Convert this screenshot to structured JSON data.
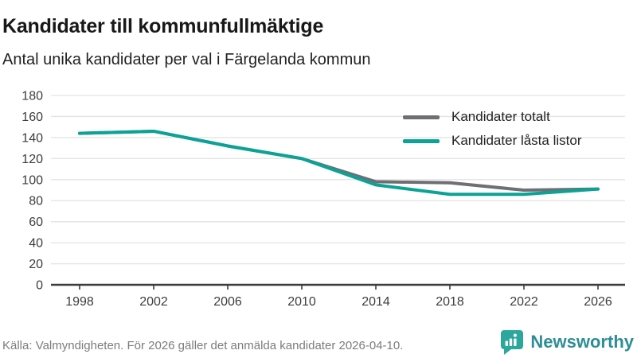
{
  "header": {
    "title": "Kandidater till kommunfullmäktige",
    "subtitle": "Antal unika kandidater per val i Färgelanda kommun"
  },
  "chart_data": {
    "type": "line",
    "categories": [
      "1998",
      "2002",
      "2006",
      "2010",
      "2014",
      "2018",
      "2022",
      "2026"
    ],
    "series": [
      {
        "name": "Kandidater totalt",
        "color": "#6f6e73",
        "values": [
          144,
          146,
          132,
          120,
          98,
          97,
          90,
          91
        ]
      },
      {
        "name": "Kandidater låsta listor",
        "color": "#0aa396",
        "values": [
          144,
          146,
          132,
          120,
          95,
          86,
          86,
          91
        ]
      }
    ],
    "title": "Kandidater till kommunfullmäktige",
    "subtitle": "Antal unika kandidater per val i Färgelanda kommun",
    "xlabel": "",
    "ylabel": "",
    "ylim": [
      0,
      180
    ],
    "yticks": [
      0,
      20,
      40,
      60,
      80,
      100,
      120,
      140,
      160,
      180
    ],
    "grid": true,
    "gridline_color": "#e3e3e3",
    "axis_color": "#3d3d3d",
    "legend_position": "top-right"
  },
  "footer": {
    "source": "Källa: Valmyndigheten. För 2026 gäller det anmälda kandidater 2026-04-10.",
    "logo_text": "Newsworthy",
    "logo_text_color": "#2e8e96",
    "logo_badge_color": "#2ba79e"
  }
}
